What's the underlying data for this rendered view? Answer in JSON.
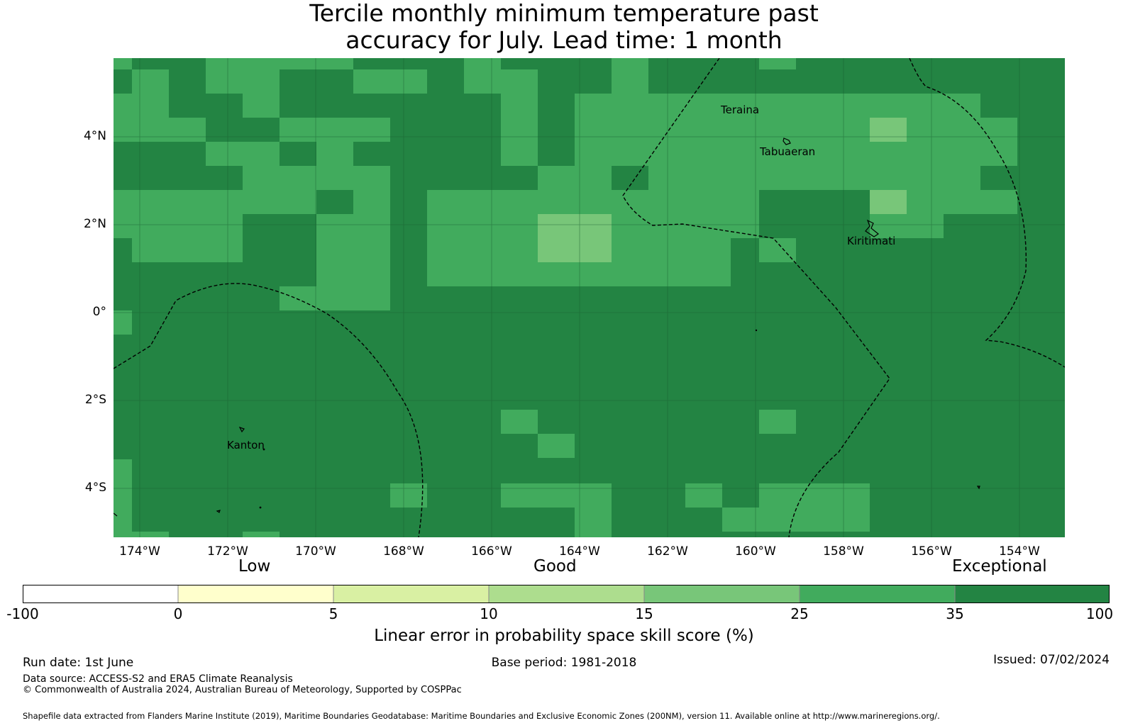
{
  "title_line1": "Tercile monthly minimum temperature past",
  "title_line2": "accuracy for July. Lead time: 1 month",
  "map": {
    "lon_range": [
      -175.1,
      -153.0
    ],
    "lat_range": [
      -5.1,
      5.8
    ],
    "lat_labels": [
      "4°N",
      "2°N",
      "0°",
      "2°S",
      "4°S"
    ],
    "lon_labels": [
      "174°W",
      "172°W",
      "170°W",
      "168°W",
      "166°W",
      "164°W",
      "162°W",
      "160°W",
      "158°W",
      "156°W",
      "154°W"
    ],
    "place_labels": [
      "Teraina",
      "Tabuaeran",
      "Kiritimati",
      "Kanton"
    ],
    "colors": {
      "c25": "#41ab5d",
      "c35": "#238443",
      "c15": "#78c679"
    },
    "legend_note": "Grid cells coloured by skill score category"
  },
  "colorbar": {
    "qualitative": [
      "Low",
      "Good",
      "Exceptional"
    ],
    "ticks": [
      "-100",
      "0",
      "5",
      "10",
      "15",
      "25",
      "35",
      "100"
    ],
    "colors": [
      "#ffffff",
      "#ffffcc",
      "#d9f0a3",
      "#addd8e",
      "#78c679",
      "#41ab5d",
      "#238443"
    ],
    "label": "Linear error in probability space skill score (%)"
  },
  "footer": {
    "run_date": "Run date: 1st June",
    "base_period": "Base period: 1981-2018",
    "issued": "Issued: 07/02/2024",
    "data_source": "Data source: ACCESS-S2 and ERA5 Climate Reanalysis",
    "copyright": "© Commonwealth of Australia 2024, Australian Bureau of Meteorology, Supported by COSPPac",
    "shapefile": "Shapefile data extracted from Flanders Marine Institute (2019), Maritime Boundaries Geodatabase: Maritime Boundaries and Exclusive Economic Zones (200NM), version 11. Available online at http://www.marineregions.org/."
  }
}
